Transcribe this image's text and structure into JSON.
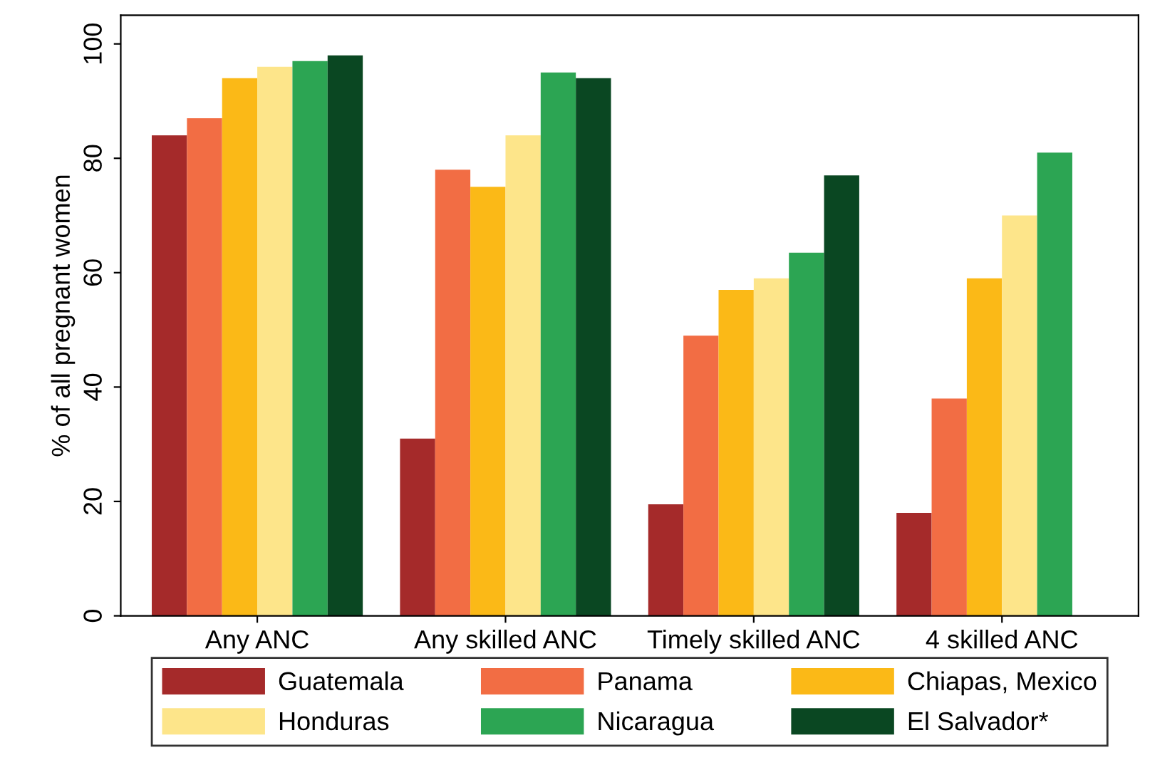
{
  "chart_data": {
    "type": "bar",
    "ylabel": "% of all pregnant women",
    "categories": [
      "Any ANC",
      "Any skilled ANC",
      "Timely skilled ANC",
      "4 skilled ANC"
    ],
    "series": [
      {
        "name": "Guatemala",
        "color": "#a52a2a",
        "values": [
          84,
          31,
          19.5,
          18
        ]
      },
      {
        "name": "Panama",
        "color": "#f26d44",
        "values": [
          87,
          78,
          49,
          38
        ]
      },
      {
        "name": "Chiapas, Mexico",
        "color": "#fbb917",
        "values": [
          94,
          75,
          57,
          59
        ]
      },
      {
        "name": "Honduras",
        "color": "#fde58a",
        "values": [
          96,
          84,
          59,
          70
        ]
      },
      {
        "name": "Nicaragua",
        "color": "#2ca553",
        "values": [
          97,
          95,
          63.5,
          81
        ]
      },
      {
        "name": "El Salvador*",
        "color": "#0a4722",
        "values": [
          98,
          94,
          77,
          null
        ]
      }
    ],
    "ylim": [
      0,
      105
    ],
    "yticks": [
      0,
      20,
      40,
      60,
      80,
      100
    ],
    "grid": false,
    "legend": "bottom"
  }
}
